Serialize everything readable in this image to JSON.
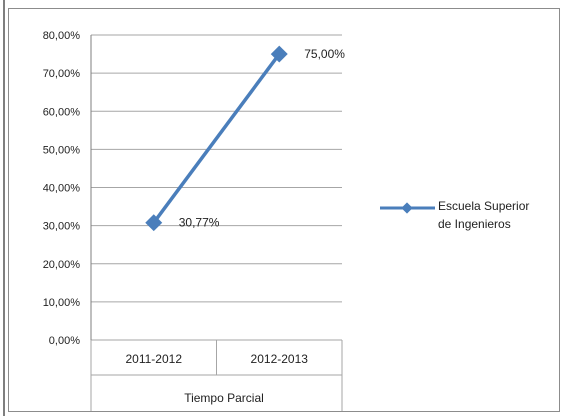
{
  "chart_data": {
    "type": "line",
    "categories": [
      "2011-2012",
      "2012-2013"
    ],
    "group_label": "Tiempo Parcial",
    "series": [
      {
        "name": "Escuela Superior de Ingenieros",
        "legend_lines": [
          "Escuela Superior",
          "de Ingenieros"
        ],
        "values": [
          30.77,
          75.0
        ],
        "value_labels": [
          "30,77%",
          "75,00%"
        ],
        "color": "#4a7ebb"
      }
    ],
    "y_ticks": [
      "0,00%",
      "10,00%",
      "20,00%",
      "30,00%",
      "40,00%",
      "50,00%",
      "60,00%",
      "70,00%",
      "80,00%"
    ],
    "ylim": [
      0,
      80
    ],
    "grid": true,
    "legend_position": "right"
  }
}
